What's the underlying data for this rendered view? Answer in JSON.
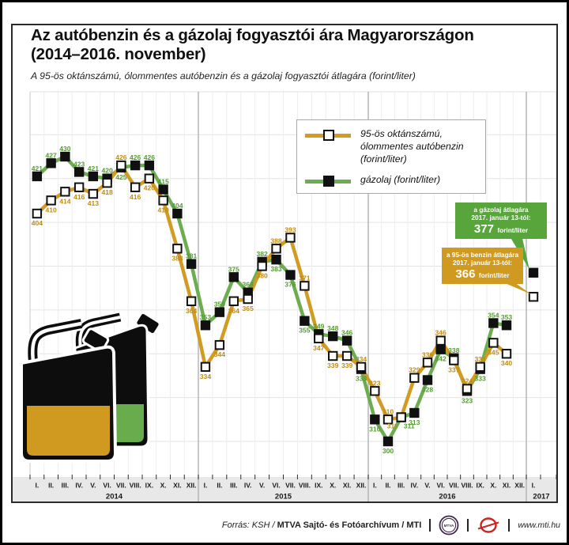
{
  "title": {
    "line1": "Az autóbenzin és a gázolaj fogyasztói ára Magyarországon",
    "line2": "(2014–2016. november)"
  },
  "subtitle": "A 95-ös oktánszámú, ólommentes autóbenzin és a gázolaj fogyasztói átlagára (forint/liter)",
  "legend": {
    "benzin_label": "95-ös oktánszámú,\nólommentes autóbenzin\n(forint/liter)",
    "gazolaj_label": "gázolaj (forint/liter)"
  },
  "callouts": {
    "gazolaj": {
      "line1": "a gázolaj átlagára",
      "line2": "2017. január 13-tól:",
      "value": "377",
      "unit": "forint/liter",
      "color": "#58a53c"
    },
    "benzin": {
      "line1": "a 95-ös benzin átlagára",
      "line2": "2017. január 13-tól:",
      "value": "366",
      "unit": "forint/liter",
      "color": "#cf9a1f"
    }
  },
  "chart_data": {
    "type": "line",
    "title": "Az autóbenzin és a gázolaj fogyasztói ára Magyarországon (2014–2016. november)",
    "ylabel": "forint/liter",
    "unit": "forint/liter",
    "ylim": [
      284,
      459
    ],
    "gridlines_y": [
      300,
      320,
      340,
      360,
      380,
      400,
      420,
      440
    ],
    "x_month_labels": [
      "I.",
      "II.",
      "III.",
      "IV.",
      "V.",
      "VI.",
      "VII.",
      "VIII.",
      "IX.",
      "X.",
      "XI.",
      "XII."
    ],
    "years": [
      "2014",
      "2015",
      "2016",
      "2017"
    ],
    "months_2017": [
      "I."
    ],
    "legend_position": "upper center",
    "series": [
      {
        "name": "95-ös oktánszámú, ólommentes autóbenzin (forint/liter)",
        "color": "#d29b22",
        "label_color": "#bf8c15",
        "marker": "white-square",
        "values": [
          404,
          410,
          414,
          416,
          413,
          418,
          426,
          416,
          420,
          410,
          388,
          364,
          334,
          344,
          364,
          365,
          380,
          388,
          393,
          371,
          347,
          339,
          339,
          334,
          323,
          310,
          311,
          329,
          336,
          346,
          337,
          324,
          334,
          345,
          340,
          null,
          366
        ]
      },
      {
        "name": "gázolaj (forint/liter)",
        "color": "#6cad50",
        "label_color": "#569a35",
        "marker": "black-square",
        "values": [
          421,
          427,
          430,
          423,
          421,
          420,
          425,
          426,
          426,
          415,
          404,
          381,
          353,
          359,
          375,
          368,
          382,
          383,
          376,
          355,
          349,
          348,
          346,
          333,
          310,
          300,
          311,
          313,
          328,
          342,
          338,
          323,
          333,
          354,
          353,
          null,
          377
        ]
      }
    ],
    "final_values_2017_jan": {
      "benzin": 366,
      "gazolaj": 377
    }
  },
  "footer": {
    "source_prefix": "Forrás: KSH /",
    "source_bold": " MTVA Sajtó- és Fotóarchívum / MTI",
    "website": "www.mti.hu",
    "mtva_logo_text": "MTVA"
  }
}
